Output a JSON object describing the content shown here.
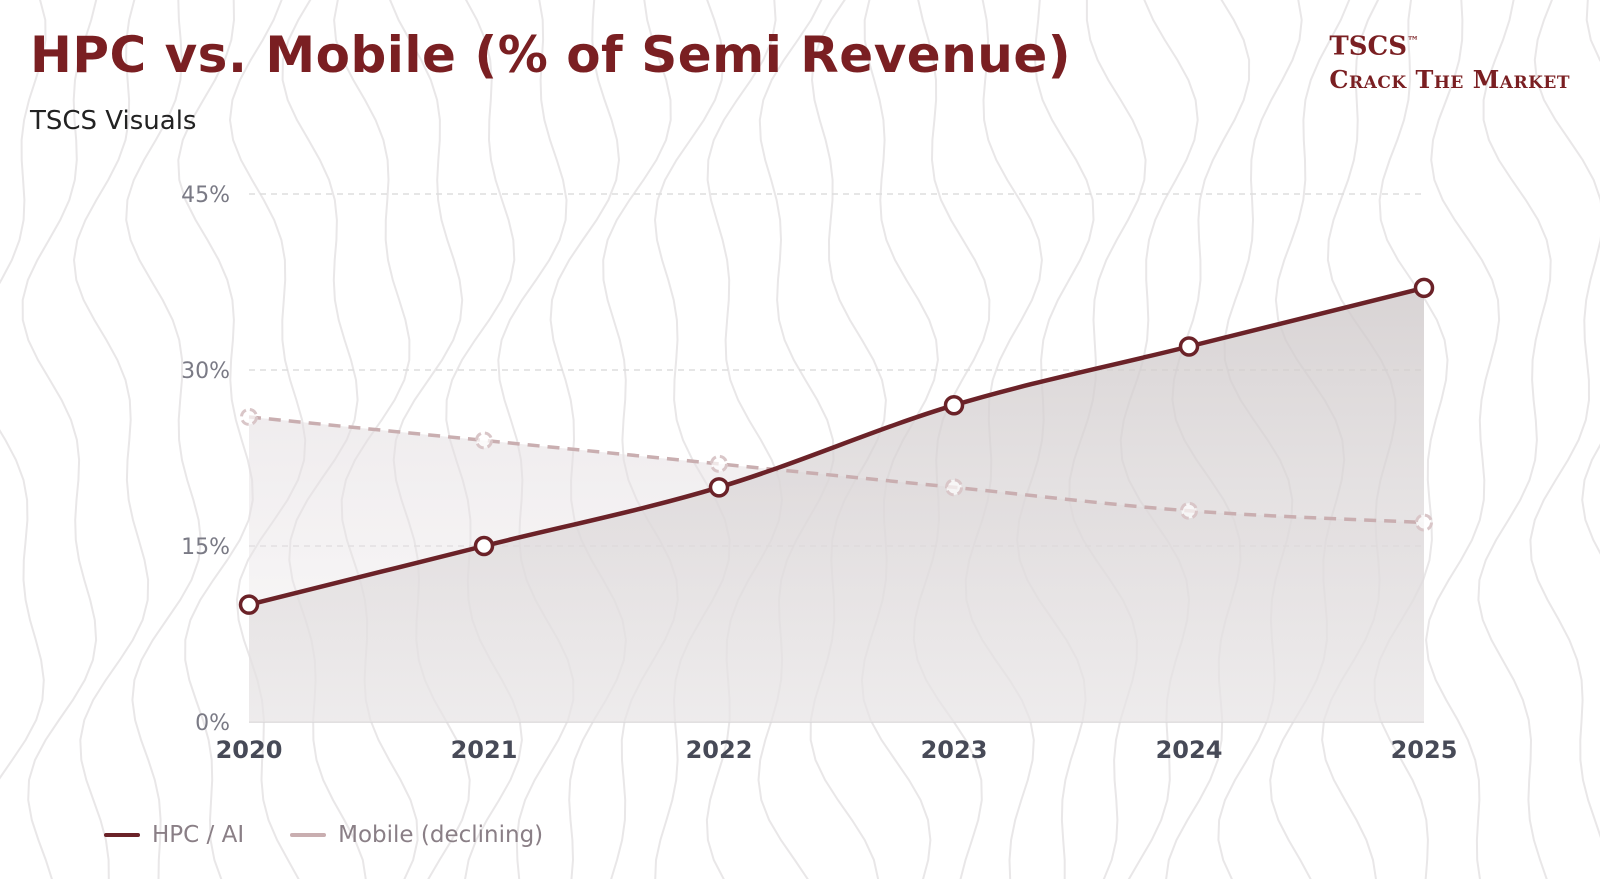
{
  "header": {
    "title": "HPC vs. Mobile (% of Semi Revenue)",
    "subtitle": "TSCS Visuals"
  },
  "brand": {
    "line1": "TSCS",
    "trademark": "™",
    "line2": "Crack The Market"
  },
  "colors": {
    "accent": "#7a1f22",
    "hpc_line": "#6b2228",
    "mobile_line": "#c9aeb0",
    "area_fill": "#d9d4d5",
    "grid": "#dddddd",
    "contour": "#e9e7e8"
  },
  "chart_data": {
    "type": "line",
    "title": "HPC vs. Mobile (% of Semi Revenue)",
    "subtitle": "TSCS Visuals",
    "x": [
      "2020",
      "2021",
      "2022",
      "2023",
      "2024",
      "2025"
    ],
    "ylim": [
      0,
      45
    ],
    "yticks": [
      0,
      15,
      30,
      45
    ],
    "ytick_labels": [
      "0%",
      "15%",
      "30%",
      "45%"
    ],
    "grid": true,
    "legend_position": "bottom-left",
    "series": [
      {
        "name": "HPC / AI",
        "values": [
          10,
          15,
          20,
          27,
          32,
          37
        ],
        "style": "solid",
        "filled": true
      },
      {
        "name": "Mobile (declining)",
        "values": [
          26,
          24,
          22,
          20,
          18,
          17
        ],
        "style": "dashed",
        "filled": true
      }
    ]
  }
}
